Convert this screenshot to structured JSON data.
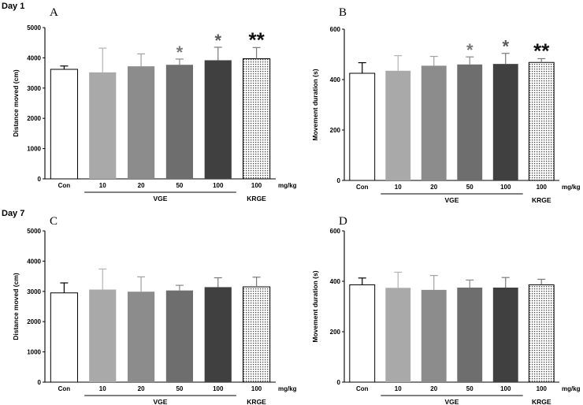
{
  "figure": {
    "day_labels": [
      "Day 1",
      "Day 7"
    ],
    "unit_label": "mg/kg",
    "group_labels": {
      "vge": "VGE",
      "krge": "KRGE"
    }
  },
  "colors": {
    "Con": "#ffffff",
    "VGE 10": "#a9a9a9",
    "VGE 20": "#8c8c8c",
    "VGE 50": "#6e6e6e",
    "VGE 100": "#404040",
    "KRGE 100": "#e6e6e6",
    "error_bar_color": [
      "#000000",
      "#b4b4b4",
      "#a0a0a0",
      "#888888",
      "#7a7a7a",
      "#7a7a7a"
    ],
    "significance_marker": [
      "#7a7a7a",
      "#5a5a5a",
      "#111111"
    ]
  },
  "chart_data": [
    {
      "panel": "A",
      "type": "bar",
      "categories": [
        "Con",
        "10",
        "20",
        "50",
        "100",
        "100"
      ],
      "values": [
        3620,
        3520,
        3720,
        3770,
        3920,
        3970
      ],
      "errors": [
        110,
        800,
        410,
        190,
        430,
        370
      ],
      "significance": [
        "",
        "",
        "",
        "*",
        "*",
        "**"
      ],
      "ylabel": "Distance moved (cm)",
      "xlabel": "",
      "ylim": [
        0,
        5000
      ],
      "yticks": [
        "0",
        "1000",
        "2000",
        "3000",
        "4000",
        "5000"
      ]
    },
    {
      "panel": "B",
      "type": "bar",
      "categories": [
        "Con",
        "10",
        "20",
        "50",
        "100",
        "100"
      ],
      "values": [
        425,
        435,
        455,
        460,
        462,
        468
      ],
      "errors": [
        42,
        60,
        37,
        30,
        42,
        15
      ],
      "significance": [
        "",
        "",
        "",
        "*",
        "*",
        "**"
      ],
      "ylabel": "Movement duration (s)",
      "xlabel": "",
      "ylim": [
        0,
        600
      ],
      "yticks": [
        "0",
        "200",
        "400",
        "600"
      ]
    },
    {
      "panel": "C",
      "type": "bar",
      "categories": [
        "Con",
        "10",
        "20",
        "50",
        "100",
        "100"
      ],
      "values": [
        2950,
        3060,
        2990,
        3030,
        3140,
        3150
      ],
      "errors": [
        330,
        680,
        490,
        170,
        310,
        320
      ],
      "significance": [
        "",
        "",
        "",
        "",
        "",
        ""
      ],
      "ylabel": "Distance moved (cm)",
      "xlabel": "",
      "ylim": [
        0,
        5000
      ],
      "yticks": [
        "0",
        "1000",
        "2000",
        "3000",
        "4000",
        "5000"
      ]
    },
    {
      "panel": "D",
      "type": "bar",
      "categories": [
        "Con",
        "10",
        "20",
        "50",
        "100",
        "100"
      ],
      "values": [
        386,
        374,
        366,
        375,
        375,
        386
      ],
      "errors": [
        27,
        62,
        57,
        30,
        40,
        22
      ],
      "significance": [
        "",
        "",
        "",
        "",
        "",
        ""
      ],
      "ylabel": "Movement duration (s)",
      "xlabel": "",
      "ylim": [
        0,
        600
      ],
      "yticks": [
        "0",
        "200",
        "400",
        "600"
      ]
    }
  ]
}
